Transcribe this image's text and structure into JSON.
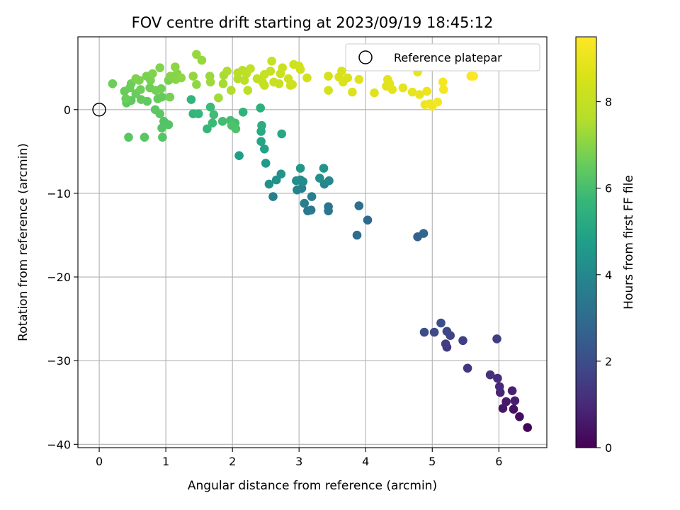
{
  "chart_data": {
    "type": "scatter",
    "title": "FOV centre drift starting at 2023/09/19 18:45:12",
    "xlabel": "Angular distance from reference (arcmin)",
    "ylabel": "Rotation from reference (arcmin)",
    "xlim": [
      -0.32,
      6.72
    ],
    "ylim": [
      -40.4,
      8.7
    ],
    "xticks": [
      0,
      1,
      2,
      3,
      4,
      5,
      6
    ],
    "yticks": [
      -40,
      -30,
      -20,
      -10,
      0
    ],
    "grid": true,
    "legend": {
      "position": "top-right",
      "entries": [
        "Reference platepar"
      ]
    },
    "reference_point": {
      "x": 0,
      "y": 0
    },
    "colorbar": {
      "label": "Hours from first FF file",
      "colormap": "viridis",
      "range": [
        0,
        9.5
      ],
      "ticks": [
        0,
        2,
        4,
        6,
        8
      ]
    },
    "points": [
      [
        6.43,
        -38.0,
        0.1
      ],
      [
        6.31,
        -36.7,
        0.3
      ],
      [
        6.22,
        -35.8,
        0.4
      ],
      [
        6.06,
        -35.7,
        0.5
      ],
      [
        6.11,
        -34.9,
        0.6
      ],
      [
        6.24,
        -34.8,
        0.7
      ],
      [
        6.2,
        -33.6,
        0.8
      ],
      [
        6.02,
        -33.8,
        0.9
      ],
      [
        6.01,
        -33.1,
        1.0
      ],
      [
        5.98,
        -32.1,
        1.1
      ],
      [
        5.87,
        -31.7,
        1.2
      ],
      [
        5.53,
        -30.9,
        1.3
      ],
      [
        5.22,
        -28.4,
        1.4
      ],
      [
        5.2,
        -28.0,
        1.5
      ],
      [
        5.46,
        -27.6,
        1.6
      ],
      [
        5.27,
        -27.0,
        1.7
      ],
      [
        5.22,
        -26.5,
        1.8
      ],
      [
        5.03,
        -26.6,
        1.9
      ],
      [
        4.88,
        -26.6,
        2.0
      ],
      [
        5.13,
        -25.5,
        2.1
      ],
      [
        5.97,
        -27.4,
        1.5
      ],
      [
        4.78,
        -15.2,
        2.7
      ],
      [
        4.87,
        -14.8,
        2.8
      ],
      [
        4.03,
        -13.2,
        2.9
      ],
      [
        3.87,
        -15.0,
        3.0
      ],
      [
        3.9,
        -11.5,
        3.1
      ],
      [
        3.44,
        -11.6,
        3.3
      ],
      [
        3.44,
        -12.1,
        3.4
      ],
      [
        3.13,
        -12.1,
        3.45
      ],
      [
        3.18,
        -12.0,
        3.5
      ],
      [
        3.08,
        -11.2,
        3.6
      ],
      [
        3.19,
        -10.4,
        3.65
      ],
      [
        2.61,
        -10.4,
        3.7
      ],
      [
        3.04,
        -9.4,
        3.8
      ],
      [
        2.97,
        -9.6,
        3.85
      ],
      [
        3.38,
        -8.9,
        3.9
      ],
      [
        3.45,
        -8.5,
        4.0
      ],
      [
        3.06,
        -8.6,
        4.1
      ],
      [
        3.02,
        -8.4,
        4.15
      ],
      [
        2.96,
        -8.5,
        4.2
      ],
      [
        3.31,
        -8.2,
        4.25
      ],
      [
        2.55,
        -8.9,
        4.3
      ],
      [
        2.66,
        -8.4,
        4.35
      ],
      [
        2.73,
        -7.7,
        4.4
      ],
      [
        3.37,
        -7.0,
        4.45
      ],
      [
        3.02,
        -7.0,
        4.5
      ],
      [
        2.5,
        -6.4,
        4.6
      ],
      [
        2.1,
        -5.5,
        4.8
      ],
      [
        2.48,
        -4.7,
        4.9
      ],
      [
        2.43,
        -3.8,
        5.0
      ],
      [
        2.74,
        -2.9,
        5.1
      ],
      [
        2.43,
        -2.6,
        5.2
      ],
      [
        2.44,
        -1.9,
        5.3
      ],
      [
        2.42,
        0.2,
        5.4
      ],
      [
        2.16,
        -0.3,
        5.5
      ],
      [
        1.38,
        1.2,
        5.6
      ],
      [
        1.41,
        -0.5,
        5.6
      ],
      [
        1.49,
        -0.5,
        5.7
      ],
      [
        1.62,
        -2.3,
        5.7
      ],
      [
        1.7,
        -1.6,
        5.8
      ],
      [
        1.67,
        0.3,
        5.8
      ],
      [
        1.72,
        -0.6,
        5.9
      ],
      [
        1.85,
        -1.4,
        5.9
      ],
      [
        1.97,
        -1.3,
        6.0
      ],
      [
        2.04,
        -1.6,
        6.0
      ],
      [
        1.99,
        -1.9,
        6.1
      ],
      [
        2.05,
        -2.3,
        6.1
      ],
      [
        1.04,
        -1.8,
        6.2
      ],
      [
        0.97,
        -1.4,
        6.2
      ],
      [
        0.94,
        -2.2,
        6.25
      ],
      [
        0.95,
        -3.3,
        6.25
      ],
      [
        0.68,
        -3.3,
        6.3
      ],
      [
        0.44,
        -3.3,
        6.3
      ],
      [
        0.91,
        -0.5,
        6.35
      ],
      [
        0.84,
        0.0,
        6.35
      ],
      [
        0.41,
        0.8,
        6.4
      ],
      [
        0.48,
        1.1,
        6.4
      ],
      [
        0.63,
        1.2,
        6.45
      ],
      [
        0.72,
        1.0,
        6.45
      ],
      [
        0.88,
        1.3,
        6.5
      ],
      [
        0.94,
        1.5,
        6.5
      ],
      [
        0.55,
        1.9,
        6.55
      ],
      [
        0.38,
        2.2,
        6.55
      ],
      [
        0.46,
        2.6,
        6.6
      ],
      [
        0.48,
        3.1,
        6.6
      ],
      [
        0.62,
        2.4,
        6.65
      ],
      [
        0.76,
        2.6,
        6.65
      ],
      [
        0.85,
        2.3,
        6.7
      ],
      [
        0.93,
        2.5,
        6.7
      ],
      [
        1.06,
        1.5,
        6.75
      ],
      [
        1.04,
        3.5,
        6.75
      ],
      [
        0.77,
        3.5,
        6.8
      ],
      [
        0.71,
        4.0,
        6.8
      ],
      [
        0.6,
        3.5,
        6.85
      ],
      [
        0.55,
        3.7,
        6.85
      ],
      [
        0.8,
        4.3,
        6.9
      ],
      [
        0.91,
        5.0,
        6.9
      ],
      [
        1.07,
        4.0,
        6.95
      ],
      [
        1.17,
        4.3,
        7.0
      ],
      [
        1.15,
        3.6,
        7.0
      ],
      [
        1.23,
        3.8,
        7.05
      ],
      [
        1.14,
        5.1,
        7.05
      ],
      [
        1.46,
        3.0,
        7.1
      ],
      [
        0.2,
        3.1,
        6.6
      ],
      [
        0.4,
        1.3,
        6.6
      ],
      [
        1.41,
        4.0,
        7.15
      ],
      [
        1.46,
        6.6,
        7.2
      ],
      [
        1.54,
        5.9,
        7.2
      ],
      [
        1.66,
        4.0,
        7.25
      ],
      [
        1.67,
        3.3,
        7.3
      ],
      [
        1.79,
        1.4,
        7.35
      ],
      [
        1.86,
        3.1,
        7.4
      ],
      [
        1.87,
        4.1,
        7.45
      ],
      [
        1.92,
        4.6,
        7.5
      ],
      [
        1.98,
        2.3,
        7.55
      ],
      [
        2.08,
        3.7,
        7.6
      ],
      [
        2.08,
        4.4,
        7.65
      ],
      [
        2.15,
        4.7,
        7.7
      ],
      [
        2.18,
        3.5,
        7.75
      ],
      [
        2.23,
        2.3,
        7.8
      ],
      [
        2.21,
        4.3,
        7.85
      ],
      [
        2.27,
        4.9,
        7.9
      ],
      [
        2.37,
        3.7,
        7.95
      ],
      [
        2.45,
        3.3,
        8.0
      ],
      [
        2.48,
        2.9,
        8.0
      ],
      [
        2.48,
        4.2,
        8.05
      ],
      [
        2.57,
        4.6,
        8.05
      ],
      [
        2.59,
        5.8,
        8.1
      ],
      [
        2.62,
        3.3,
        8.1
      ],
      [
        2.7,
        3.1,
        8.15
      ],
      [
        2.72,
        4.3,
        8.2
      ],
      [
        2.75,
        5.0,
        8.2
      ],
      [
        2.84,
        3.7,
        8.25
      ],
      [
        2.9,
        3.0,
        8.25
      ],
      [
        2.92,
        5.4,
        8.3
      ],
      [
        2.87,
        2.9,
        8.3
      ],
      [
        3.0,
        5.2,
        8.35
      ],
      [
        3.02,
        4.8,
        8.35
      ],
      [
        3.12,
        3.8,
        8.4
      ],
      [
        3.44,
        2.3,
        8.45
      ],
      [
        3.44,
        4.0,
        8.5
      ],
      [
        3.6,
        3.9,
        8.55
      ],
      [
        3.64,
        4.6,
        8.55
      ],
      [
        3.66,
        3.3,
        8.6
      ],
      [
        3.73,
        3.8,
        8.6
      ],
      [
        3.8,
        2.1,
        8.65
      ],
      [
        3.9,
        3.6,
        8.7
      ],
      [
        4.13,
        2.0,
        8.75
      ],
      [
        4.33,
        3.6,
        8.8
      ],
      [
        4.31,
        2.8,
        8.8
      ],
      [
        4.36,
        3.1,
        8.85
      ],
      [
        4.4,
        2.4,
        8.85
      ],
      [
        4.56,
        2.6,
        8.9
      ],
      [
        4.7,
        2.1,
        8.95
      ],
      [
        4.78,
        4.5,
        8.95
      ],
      [
        4.81,
        1.8,
        9.0
      ],
      [
        4.92,
        2.2,
        9.05
      ],
      [
        4.89,
        0.6,
        9.1
      ],
      [
        4.96,
        0.7,
        9.15
      ],
      [
        5.0,
        0.4,
        9.2
      ],
      [
        5.08,
        0.9,
        9.25
      ],
      [
        5.16,
        3.3,
        9.3
      ],
      [
        5.17,
        2.4,
        9.3
      ],
      [
        5.58,
        4.0,
        9.4
      ],
      [
        5.62,
        4.0,
        9.45
      ]
    ]
  }
}
